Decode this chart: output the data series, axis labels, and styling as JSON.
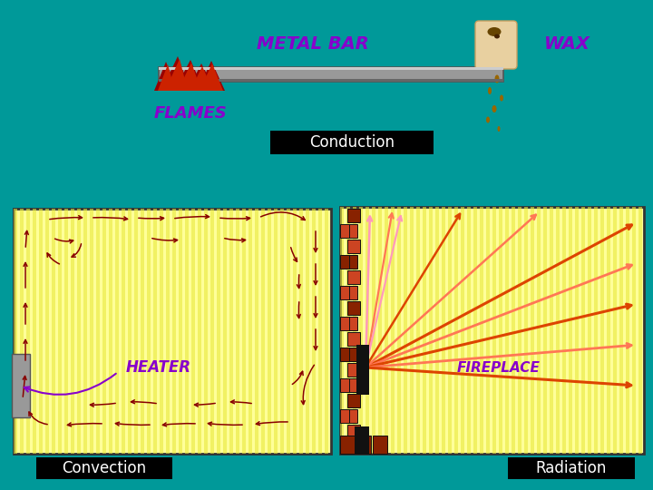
{
  "background_color": "#009999",
  "title_conduction": "Conduction",
  "title_convection": "Convection",
  "title_radiation": "Radiation",
  "metal_bar_label": "METAL BAR",
  "wax_label": "WAX",
  "flames_label": "FLAMES",
  "heater_label": "HEATER",
  "fireplace_label": "FIREPLACE",
  "label_color": "#8800cc",
  "conduction_box_color": "#000000",
  "panel_bg": "#ffff99",
  "stripe_color": "#dddd44",
  "arrow_color": "#880000",
  "ray_orange": "#dd4400",
  "ray_salmon": "#ff7755",
  "ray_pink": "#ff99bb",
  "brick_dark": "#882200",
  "brick_light": "#cc4422",
  "wax_body": "#e8c898",
  "wax_drip": "#996600",
  "flame_dark": "#990000",
  "flame_mid": "#cc2200",
  "flame_orange": "#dd6600"
}
